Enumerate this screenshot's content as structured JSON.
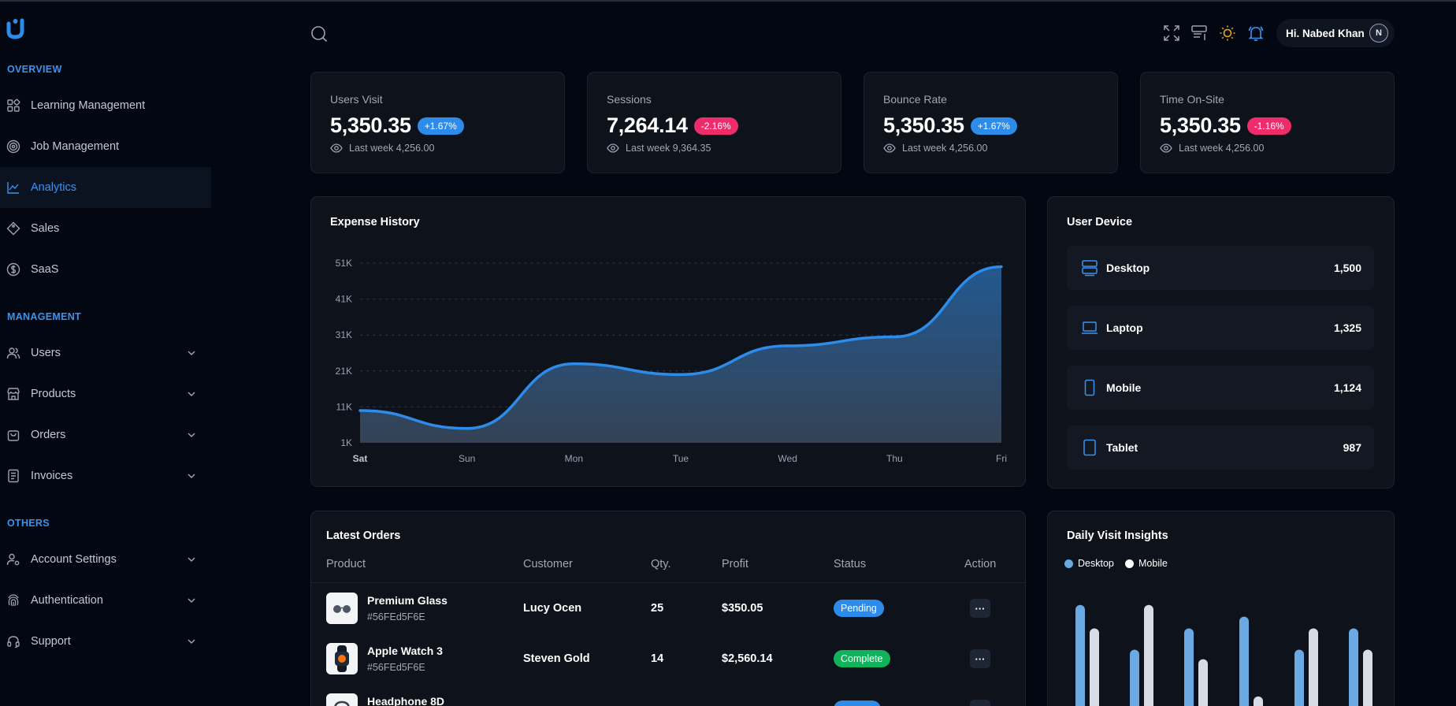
{
  "sidebar": {
    "logo_name": "brand-logo",
    "sections": [
      {
        "title": "OVERVIEW"
      },
      {
        "title": "MANAGEMENT"
      },
      {
        "title": "OTHERS"
      }
    ],
    "items": [
      {
        "label": "Learning Management",
        "icon": "grid-icon"
      },
      {
        "label": "Job Management",
        "icon": "target-icon"
      },
      {
        "label": "Analytics",
        "icon": "chart-icon",
        "active": true
      },
      {
        "label": "Sales",
        "icon": "tag-icon"
      },
      {
        "label": "SaaS",
        "icon": "dollar-icon"
      },
      {
        "label": "Users",
        "icon": "users-icon"
      },
      {
        "label": "Products",
        "icon": "store-icon"
      },
      {
        "label": "Orders",
        "icon": "bag-icon"
      },
      {
        "label": "Invoices",
        "icon": "document-icon"
      },
      {
        "label": "Account Settings",
        "icon": "user-settings-icon"
      },
      {
        "label": "Authentication",
        "icon": "fingerprint-icon"
      },
      {
        "label": "Support",
        "icon": "headset-icon"
      }
    ]
  },
  "header": {
    "user_greeting": "Hi. Nabed Khan",
    "avatar_initial": "N"
  },
  "stats": [
    {
      "title": "Users Visit",
      "value": "5,350.35",
      "change": "+1.67%",
      "trend": "up",
      "sub": "Last week 4,256.00"
    },
    {
      "title": "Sessions",
      "value": "7,264.14",
      "change": "-2.16%",
      "trend": "down",
      "sub": "Last week 9,364.35"
    },
    {
      "title": "Bounce Rate",
      "value": "5,350.35",
      "change": "+1.67%",
      "trend": "up",
      "sub": "Last week 4,256.00"
    },
    {
      "title": "Time On-Site",
      "value": "5,350.35",
      "change": "-1.16%",
      "trend": "down",
      "sub": "Last week 4,256.00"
    }
  ],
  "expense": {
    "title": "Expense History"
  },
  "chart_data": [
    {
      "type": "area",
      "title": "Expense History",
      "categories": [
        "Sat",
        "Sun",
        "Mon",
        "Tue",
        "Wed",
        "Thu",
        "Fri"
      ],
      "y_ticks": [
        "51K",
        "41K",
        "31K",
        "21K",
        "11K",
        "1K"
      ],
      "ylim": [
        1000,
        51000
      ],
      "series": [
        {
          "values": [
            10000,
            5000,
            23000,
            20000,
            28000,
            30500,
            50000
          ]
        }
      ],
      "grid": true,
      "color": "#2d8cea"
    },
    {
      "type": "bar",
      "title": "Daily Visit Insights",
      "series": [
        {
          "name": "Desktop",
          "color": "#6aa9e4",
          "values": [
            95,
            53,
            73,
            84,
            53,
            73
          ]
        },
        {
          "name": "Mobile",
          "color": "#d8dde5",
          "values": [
            73,
            95,
            44,
            9,
            73,
            53
          ]
        }
      ],
      "legend": "top-left"
    }
  ],
  "devices": {
    "title": "User Device",
    "items": [
      {
        "name": "Desktop",
        "count": "1,500",
        "icon": "desktop-icon"
      },
      {
        "name": "Laptop",
        "count": "1,325",
        "icon": "laptop-icon"
      },
      {
        "name": "Mobile",
        "count": "1,124",
        "icon": "mobile-icon"
      },
      {
        "name": "Tablet",
        "count": "987",
        "icon": "tablet-icon"
      }
    ]
  },
  "orders": {
    "title": "Latest Orders",
    "columns": [
      "Product",
      "Customer",
      "Qty.",
      "Profit",
      "Status",
      "Action"
    ],
    "rows": [
      {
        "product": "Premium Glass",
        "sku": "#56FEd5F6E",
        "customer": "Lucy Ocen",
        "qty": "25",
        "profit": "$350.05",
        "status": "Pending",
        "action": "···"
      },
      {
        "product": "Apple Watch 3",
        "sku": "#56FEd5F6E",
        "customer": "Steven Gold",
        "qty": "14",
        "profit": "$2,560.14",
        "status": "Complete",
        "action": "···"
      },
      {
        "product": "Headphone 8D",
        "sku": "",
        "customer": "",
        "qty": "",
        "profit": "",
        "status": "",
        "action": "···"
      }
    ]
  },
  "insights": {
    "title": "Daily Visit Insights",
    "legend": [
      "Desktop",
      "Mobile"
    ]
  },
  "colors": {
    "accent": "#3b93f0",
    "up": "#2d8cea",
    "down": "#ee2c6b",
    "complete": "#10b25b"
  }
}
